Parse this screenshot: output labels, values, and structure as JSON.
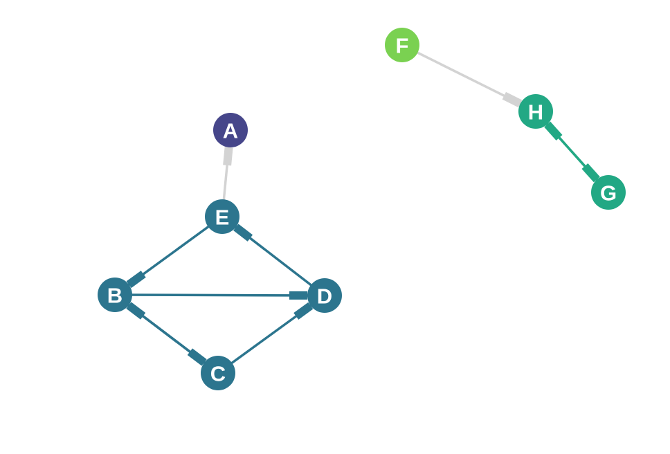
{
  "graph": {
    "nodes": [
      {
        "id": "A",
        "label": "A",
        "color": "#46468a"
      },
      {
        "id": "B",
        "label": "B",
        "color": "#2c758e"
      },
      {
        "id": "C",
        "label": "C",
        "color": "#2c758e"
      },
      {
        "id": "D",
        "label": "D",
        "color": "#2c758e"
      },
      {
        "id": "E",
        "label": "E",
        "color": "#2c758e"
      },
      {
        "id": "F",
        "label": "F",
        "color": "#7ad151"
      },
      {
        "id": "H",
        "label": "H",
        "color": "#22a884"
      },
      {
        "id": "G",
        "label": "G",
        "color": "#22a884"
      }
    ],
    "edges": [
      {
        "source": "E",
        "target": "A",
        "color": "#d3d3d3"
      },
      {
        "source": "E",
        "target": "B",
        "color": "#2c758e"
      },
      {
        "source": "D",
        "target": "E",
        "color": "#2c758e"
      },
      {
        "source": "B",
        "target": "D",
        "color": "#2c758e"
      },
      {
        "source": "C",
        "target": "B",
        "color": "#2c758e"
      },
      {
        "source": "B",
        "target": "C",
        "color": "#2c758e"
      },
      {
        "source": "C",
        "target": "D",
        "color": "#2c758e"
      },
      {
        "source": "F",
        "target": "H",
        "color": "#d3d3d3"
      },
      {
        "source": "G",
        "target": "H",
        "color": "#22a884"
      },
      {
        "source": "H",
        "target": "G",
        "color": "#22a884"
      }
    ]
  }
}
